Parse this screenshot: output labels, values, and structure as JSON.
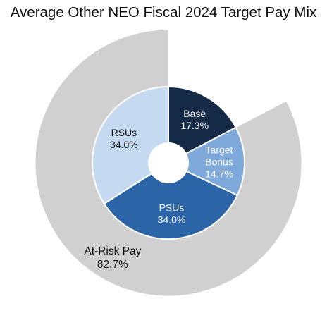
{
  "chart_data": {
    "type": "pie",
    "title": "Average Other NEO Fiscal 2024 Target Pay Mix",
    "inner": {
      "slices": [
        {
          "label": "Base",
          "value_label": "17.3%",
          "value": 17.3,
          "color": "#152a47",
          "text_color": "#ffffff"
        },
        {
          "label": "Target\nBonus",
          "value_label": "14.7%",
          "value": 14.7,
          "color": "#7fa9da",
          "text_color": "#ffffff"
        },
        {
          "label": "PSUs",
          "value_label": "34.0%",
          "value": 34.0,
          "color": "#2b64a7",
          "text_color": "#ffffff"
        },
        {
          "label": "RSUs",
          "value_label": "34.0%",
          "value": 34.0,
          "color": "#c5daf0",
          "text_color": "#111111"
        }
      ]
    },
    "outer": {
      "slices": [
        {
          "label": "",
          "value_label": "",
          "value": 17.3,
          "color": "none"
        },
        {
          "label": "At-Risk Pay",
          "value_label": "82.7%",
          "value": 82.7,
          "color": "#d1d0d1"
        }
      ]
    }
  }
}
